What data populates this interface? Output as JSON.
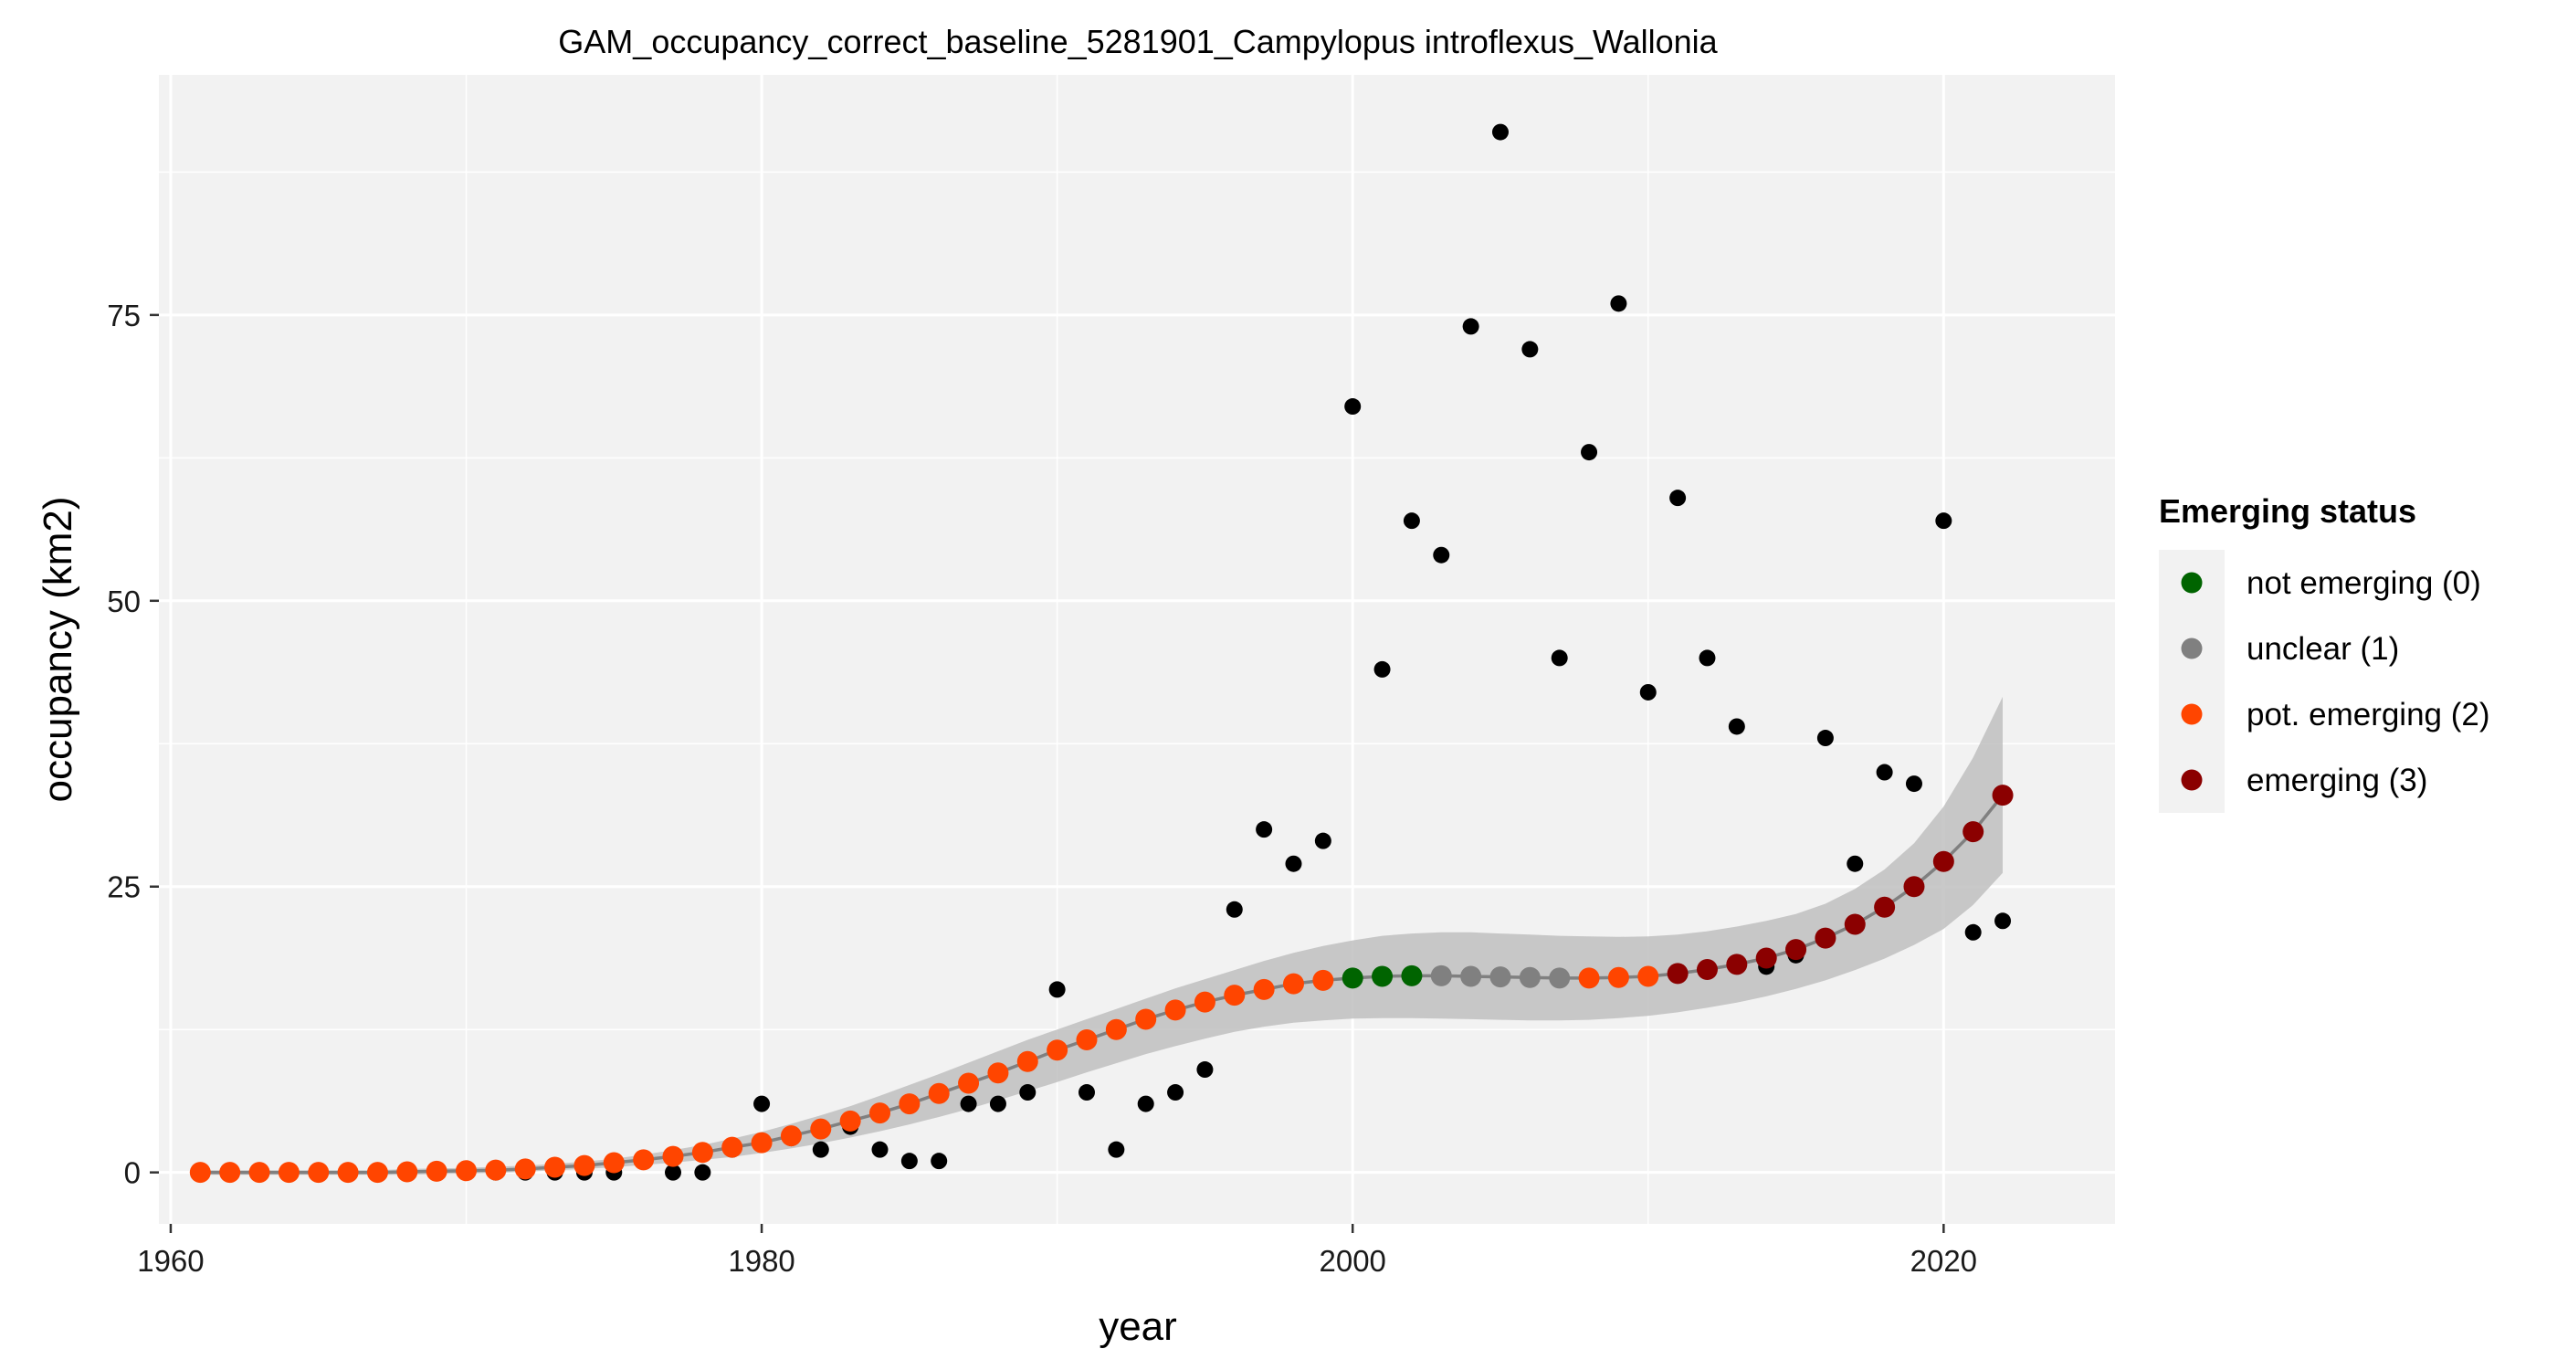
{
  "chart_data": {
    "type": "scatter",
    "title": "GAM_occupancy_correct_baseline_5281901_Campylopus introflexus_Wallonia",
    "xlabel": "year",
    "ylabel": "occupancy (km2)",
    "xlim": [
      1959.6,
      2025.8
    ],
    "ylim": [
      -4.5,
      96
    ],
    "x_ticks": [
      1960,
      1980,
      2000,
      2020
    ],
    "y_ticks": [
      0,
      25,
      50,
      75
    ],
    "grid": true,
    "legend_position": "right",
    "legend": {
      "title": "Emerging status",
      "entries": [
        {
          "label": "not emerging (0)",
          "color": "#006400"
        },
        {
          "label": "unclear (1)",
          "color": "#808080"
        },
        {
          "label": "pot. emerging (2)",
          "color": "#FF4500"
        },
        {
          "label": "emerging (3)",
          "color": "#8B0000"
        }
      ]
    },
    "observed": {
      "color": "#000000",
      "x": [
        1961,
        1962,
        1963,
        1964,
        1965,
        1966,
        1967,
        1968,
        1969,
        1970,
        1971,
        1972,
        1973,
        1974,
        1975,
        1976,
        1977,
        1978,
        1979,
        1980,
        1981,
        1982,
        1983,
        1984,
        1985,
        1986,
        1987,
        1988,
        1989,
        1990,
        1991,
        1992,
        1993,
        1994,
        1995,
        1996,
        1997,
        1998,
        1999,
        2000,
        2001,
        2002,
        2003,
        2004,
        2005,
        2006,
        2007,
        2008,
        2009,
        2010,
        2011,
        2012,
        2013,
        2014,
        2015,
        2016,
        2017,
        2018,
        2019,
        2020,
        2021,
        2022
      ],
      "y": [
        0,
        0,
        0,
        0,
        0,
        0,
        0,
        0,
        0,
        0,
        0,
        0,
        0,
        0,
        0,
        1,
        0,
        0,
        2,
        6,
        3,
        2,
        4,
        2,
        1,
        1,
        6,
        6,
        7,
        16,
        7,
        2,
        6,
        7,
        9,
        23,
        30,
        27,
        29,
        67,
        44,
        57,
        54,
        74,
        91,
        72,
        45,
        63,
        76,
        42,
        59,
        45,
        39,
        18,
        19,
        38,
        27,
        35,
        34,
        57,
        21,
        22
      ]
    },
    "fitted": {
      "x": [
        1961,
        1962,
        1963,
        1964,
        1965,
        1966,
        1967,
        1968,
        1969,
        1970,
        1971,
        1972,
        1973,
        1974,
        1975,
        1976,
        1977,
        1978,
        1979,
        1980,
        1981,
        1982,
        1983,
        1984,
        1985,
        1986,
        1987,
        1988,
        1989,
        1990,
        1991,
        1992,
        1993,
        1994,
        1995,
        1996,
        1997,
        1998,
        1999,
        2000,
        2001,
        2002,
        2003,
        2004,
        2005,
        2006,
        2007,
        2008,
        2009,
        2010,
        2011,
        2012,
        2013,
        2014,
        2015,
        2016,
        2017,
        2018,
        2019,
        2020,
        2021,
        2022
      ],
      "y": [
        0,
        0,
        0,
        0,
        0,
        0,
        0,
        0.05,
        0.1,
        0.15,
        0.2,
        0.3,
        0.45,
        0.6,
        0.85,
        1.1,
        1.4,
        1.75,
        2.2,
        2.6,
        3.2,
        3.8,
        4.5,
        5.2,
        6,
        6.9,
        7.8,
        8.7,
        9.7,
        10.7,
        11.6,
        12.5,
        13.4,
        14.2,
        14.9,
        15.5,
        16,
        16.5,
        16.8,
        17,
        17.15,
        17.2,
        17.2,
        17.15,
        17.1,
        17.05,
        17,
        17,
        17.05,
        17.15,
        17.4,
        17.75,
        18.2,
        18.75,
        19.5,
        20.5,
        21.7,
        23.2,
        25,
        27.2,
        29.8,
        33
      ],
      "lower": [
        -0.2,
        -0.2,
        -0.2,
        -0.2,
        -0.2,
        -0.2,
        -0.2,
        -0.2,
        -0.15,
        -0.1,
        -0.05,
        0.05,
        0.2,
        0.3,
        0.45,
        0.65,
        0.85,
        1.1,
        1.35,
        1.7,
        2.1,
        2.55,
        3.05,
        3.6,
        4.2,
        4.85,
        5.55,
        6.3,
        7.1,
        7.9,
        8.75,
        9.55,
        10.35,
        11.05,
        11.7,
        12.3,
        12.75,
        13.1,
        13.3,
        13.45,
        13.5,
        13.5,
        13.45,
        13.4,
        13.35,
        13.3,
        13.3,
        13.35,
        13.5,
        13.7,
        14,
        14.4,
        14.85,
        15.4,
        16.05,
        16.8,
        17.7,
        18.7,
        19.9,
        21.3,
        23.4,
        26.2
      ],
      "upper": [
        0.2,
        0.2,
        0.2,
        0.2,
        0.2,
        0.2,
        0.2,
        0.3,
        0.35,
        0.4,
        0.5,
        0.6,
        0.75,
        0.95,
        1.2,
        1.55,
        1.95,
        2.4,
        2.95,
        3.55,
        4.25,
        5,
        5.8,
        6.7,
        7.65,
        8.6,
        9.6,
        10.6,
        11.6,
        12.5,
        13.4,
        14.3,
        15.2,
        16.1,
        16.9,
        17.7,
        18.5,
        19.2,
        19.8,
        20.3,
        20.7,
        20.9,
        21,
        21,
        20.9,
        20.8,
        20.7,
        20.65,
        20.6,
        20.65,
        20.8,
        21.1,
        21.5,
        22,
        22.6,
        23.5,
        24.8,
        26.5,
        28.8,
        32,
        36.3,
        41.6
      ]
    },
    "status_ranges": [
      {
        "from": 1961,
        "to": 1999,
        "status": "pot. emerging (2)"
      },
      {
        "from": 2000,
        "to": 2002,
        "status": "not emerging (0)"
      },
      {
        "from": 2003,
        "to": 2007,
        "status": "unclear (1)"
      },
      {
        "from": 2008,
        "to": 2010,
        "status": "pot. emerging (2)"
      },
      {
        "from": 2011,
        "to": 2022,
        "status": "emerging (3)"
      }
    ],
    "panel_color": "#F2F2F2",
    "ribbon_color": "#BFBFBF",
    "line_color": "#808080"
  }
}
